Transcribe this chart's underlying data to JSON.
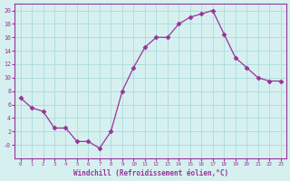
{
  "x": [
    0,
    1,
    2,
    3,
    4,
    5,
    6,
    7,
    8,
    9,
    10,
    11,
    12,
    13,
    14,
    15,
    16,
    17,
    18,
    19,
    20,
    21,
    22,
    23
  ],
  "y": [
    7,
    5.5,
    5,
    2.5,
    2.5,
    0.5,
    0.5,
    -0.5,
    2,
    8,
    11.5,
    14.5,
    16,
    16,
    18,
    19,
    19.5,
    20,
    16.5,
    13,
    11.5,
    10,
    9.5,
    9.5
  ],
  "line_color": "#993399",
  "marker_color": "#993399",
  "bg_color": "#d6f0f0",
  "grid_color": "#b0dede",
  "xlabel": "Windchill (Refroidissement éolien,°C)",
  "xlabel_color": "#993399",
  "tick_color": "#993399",
  "ylim": [
    -2,
    21
  ],
  "xlim": [
    -0.5,
    23.5
  ],
  "yticks": [
    0,
    2,
    4,
    6,
    8,
    10,
    12,
    14,
    16,
    18,
    20
  ],
  "ytick_labels": [
    "-0",
    "2",
    "4",
    "6",
    "8",
    "10",
    "12",
    "14",
    "16",
    "18",
    "20"
  ],
  "xticks": [
    0,
    1,
    2,
    3,
    4,
    5,
    6,
    7,
    8,
    9,
    10,
    11,
    12,
    13,
    14,
    15,
    16,
    17,
    18,
    19,
    20,
    21,
    22,
    23
  ]
}
